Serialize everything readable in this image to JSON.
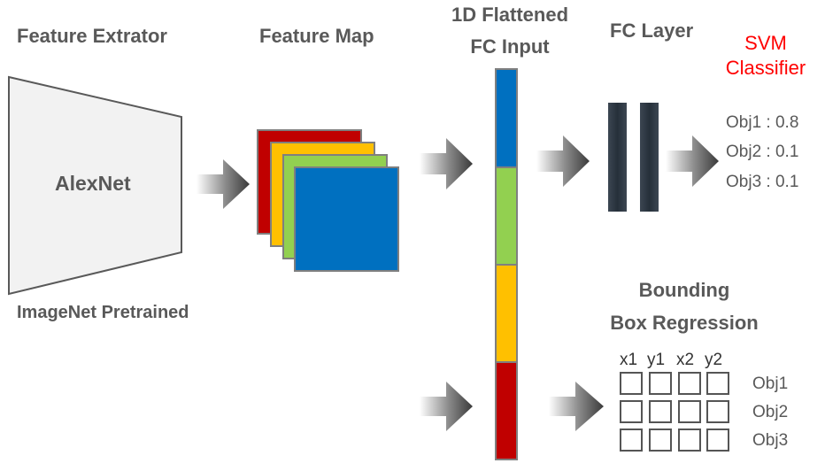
{
  "labels": {
    "feature_extractor": "Feature Extrator",
    "feature_map": "Feature Map",
    "flattened_line1": "1D Flattened",
    "flattened_line2": "FC Input",
    "fc_layer": "FC Layer",
    "svm_line1": "SVM",
    "svm_line2": "Classifier",
    "alexnet": "AlexNet",
    "imagenet": "ImageNet Pretrained",
    "bbox_line1": "Bounding",
    "bbox_line2": "Box Regression"
  },
  "svm_outputs": [
    "Obj1 : 0.8",
    "Obj2 : 0.1",
    "Obj3 : 0.1"
  ],
  "bbox_columns": [
    "x1",
    "y1",
    "x2",
    "y2"
  ],
  "bbox_rows": [
    "Obj1",
    "Obj2",
    "Obj3"
  ],
  "colors": {
    "red": "#c00000",
    "orange": "#ffc000",
    "green": "#92d050",
    "blue": "#0070c0",
    "label_gray": "#595959",
    "svm_red": "#ff0000",
    "fc_bar": "#2e3640"
  }
}
